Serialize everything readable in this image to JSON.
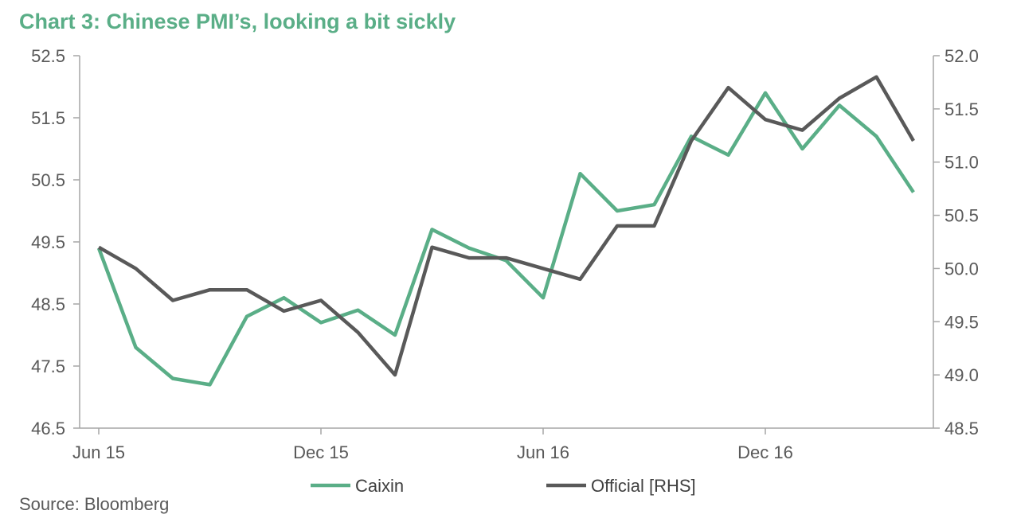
{
  "chart_data": {
    "type": "line",
    "title": "Chart 3: Chinese PMI’s, looking a bit sickly",
    "source": "Source: Bloomberg",
    "x": [
      "Jun 15",
      "Jul 15",
      "Aug 15",
      "Sep 15",
      "Oct 15",
      "Nov 15",
      "Dec 15",
      "Jan 16",
      "Feb 16",
      "Mar 16",
      "Apr 16",
      "May 16",
      "Jun 16",
      "Jul 16",
      "Aug 16",
      "Sep 16",
      "Oct 16",
      "Nov 16",
      "Dec 16",
      "Jan 17",
      "Feb 17",
      "Mar 17",
      "Apr 17"
    ],
    "x_tick_labels": [
      "Jun 15",
      "Dec 15",
      "Jun 16",
      "Dec 16"
    ],
    "x_tick_categories": [
      "Jun 15",
      "Dec 15",
      "Jun 16",
      "Dec 16"
    ],
    "series": [
      {
        "name": "Caixin",
        "axis": "left",
        "color": "#5aae87",
        "values": [
          49.4,
          47.8,
          47.3,
          47.2,
          48.3,
          48.6,
          48.2,
          48.4,
          48.0,
          49.7,
          49.4,
          49.2,
          48.6,
          50.6,
          50.0,
          50.1,
          51.2,
          50.9,
          51.9,
          51.0,
          51.7,
          51.2,
          50.3
        ]
      },
      {
        "name": "Official [RHS]",
        "axis": "right",
        "color": "#595959",
        "values": [
          50.2,
          50.0,
          49.7,
          49.8,
          49.8,
          49.6,
          49.7,
          49.4,
          49.0,
          50.2,
          50.1,
          50.1,
          50.0,
          49.9,
          50.4,
          50.4,
          51.2,
          51.7,
          51.4,
          51.3,
          51.6,
          51.8,
          51.2
        ]
      }
    ],
    "y_left": {
      "min": 46.5,
      "max": 52.5,
      "ticks": [
        "46.5",
        "47.5",
        "48.5",
        "49.5",
        "50.5",
        "51.5",
        "52.5"
      ]
    },
    "y_right": {
      "min": 48.5,
      "max": 52.0,
      "ticks": [
        "48.5",
        "49.0",
        "49.5",
        "50.0",
        "50.5",
        "51.0",
        "51.5",
        "52.0"
      ]
    },
    "legend_position": "bottom",
    "grid": false
  }
}
